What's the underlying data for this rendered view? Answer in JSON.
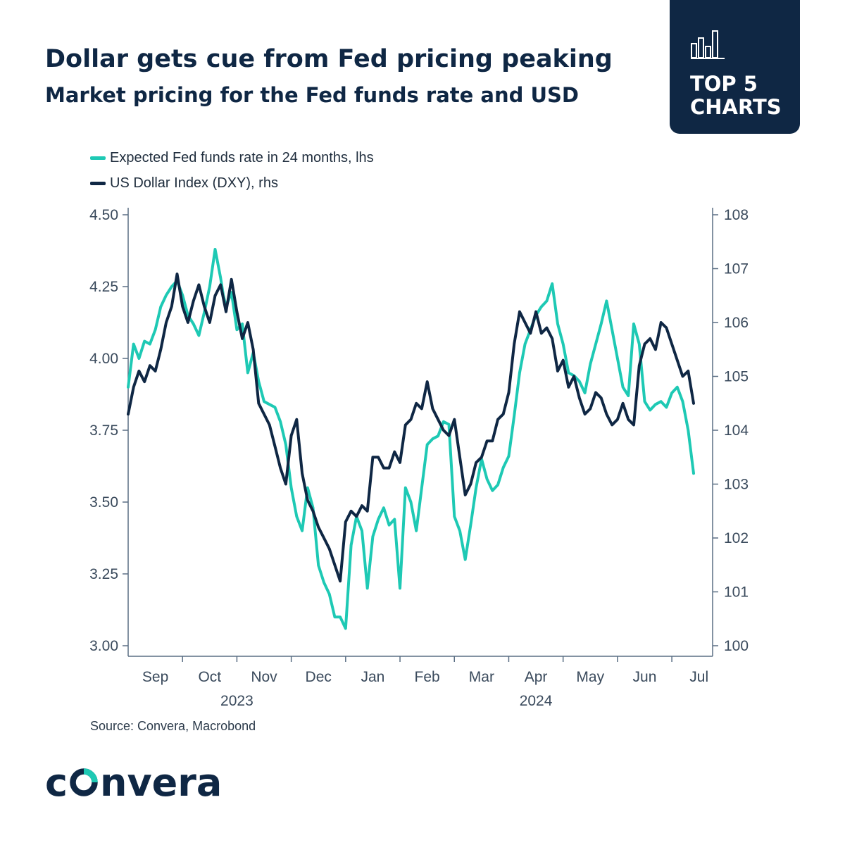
{
  "header": {
    "title": "Dollar gets cue from Fed pricing peaking",
    "subtitle": "Market pricing for the Fed funds rate and USD"
  },
  "badge": {
    "line1": "TOP 5",
    "line2": "CHARTS",
    "icon": "bar-chart-icon"
  },
  "source": "Source: Convera, Macrobond",
  "brand": {
    "logo_text": "convera",
    "logo_mark": "convera-o-mark"
  },
  "colors": {
    "navy": "#0f2744",
    "teal": "#1ec9b4",
    "axis": "#5a6e84",
    "tick_text": "#3a4a5c"
  },
  "chart_data": {
    "type": "line",
    "title": "Dollar gets cue from Fed pricing peaking",
    "subtitle": "Market pricing for the Fed funds rate and USD",
    "x_unit": "months since 2023-08-15",
    "x_range": [
      0,
      10.75
    ],
    "x_ticks": [
      {
        "label": "Sep",
        "x": 0.5
      },
      {
        "label": "Oct",
        "x": 1.5
      },
      {
        "label": "Nov",
        "x": 2.5
      },
      {
        "label": "Dec",
        "x": 3.5
      },
      {
        "label": "Jan",
        "x": 4.5
      },
      {
        "label": "Feb",
        "x": 5.5
      },
      {
        "label": "Mar",
        "x": 6.5
      },
      {
        "label": "Apr",
        "x": 7.5
      },
      {
        "label": "May",
        "x": 8.5
      },
      {
        "label": "Jun",
        "x": 9.5
      },
      {
        "label": "Jul",
        "x": 10.5
      }
    ],
    "x_tick_marks": [
      1,
      2,
      3,
      4,
      5,
      6,
      7,
      8,
      9,
      10
    ],
    "years": [
      {
        "label": "2023",
        "x": 2
      },
      {
        "label": "2024",
        "x": 7.5
      }
    ],
    "y_left": {
      "label": "lhs",
      "range": [
        3.0,
        4.5
      ],
      "ticks": [
        "3.00",
        "3.25",
        "3.50",
        "3.75",
        "4.00",
        "4.25",
        "4.50"
      ]
    },
    "y_right": {
      "label": "rhs",
      "range": [
        100,
        108
      ],
      "ticks": [
        "100",
        "101",
        "102",
        "103",
        "104",
        "105",
        "106",
        "107",
        "108"
      ]
    },
    "legend_position": "top-left",
    "grid": false,
    "series": [
      {
        "name": "Expected Fed funds rate in 24 months, lhs",
        "axis": "left",
        "color": "#1ec9b4",
        "x": [
          0.0,
          0.1,
          0.2,
          0.3,
          0.4,
          0.5,
          0.6,
          0.7,
          0.8,
          0.9,
          1.0,
          1.1,
          1.2,
          1.3,
          1.4,
          1.5,
          1.6,
          1.7,
          1.75,
          1.8,
          1.9,
          2.0,
          2.1,
          2.2,
          2.3,
          2.4,
          2.5,
          2.6,
          2.7,
          2.8,
          2.9,
          3.0,
          3.1,
          3.2,
          3.3,
          3.4,
          3.5,
          3.6,
          3.7,
          3.8,
          3.9,
          4.0,
          4.1,
          4.2,
          4.3,
          4.4,
          4.5,
          4.6,
          4.7,
          4.8,
          4.9,
          5.0,
          5.1,
          5.2,
          5.3,
          5.4,
          5.5,
          5.6,
          5.7,
          5.8,
          5.9,
          6.0,
          6.1,
          6.2,
          6.3,
          6.4,
          6.5,
          6.6,
          6.7,
          6.8,
          6.9,
          7.0,
          7.1,
          7.2,
          7.3,
          7.4,
          7.5,
          7.6,
          7.7,
          7.8,
          7.9,
          8.0,
          8.1,
          8.2,
          8.3,
          8.4,
          8.5,
          8.6,
          8.7,
          8.8,
          8.9,
          9.0,
          9.1,
          9.2,
          9.3,
          9.4,
          9.5,
          9.6,
          9.7,
          9.8,
          9.9,
          10.0,
          10.1,
          10.2,
          10.3,
          10.4
        ],
        "values": [
          3.9,
          4.05,
          4.0,
          4.06,
          4.05,
          4.1,
          4.18,
          4.22,
          4.25,
          4.27,
          4.22,
          4.15,
          4.12,
          4.08,
          4.16,
          4.25,
          4.38,
          4.28,
          4.22,
          4.18,
          4.23,
          4.1,
          4.12,
          3.95,
          4.02,
          3.92,
          3.85,
          3.84,
          3.83,
          3.78,
          3.7,
          3.55,
          3.45,
          3.4,
          3.55,
          3.48,
          3.28,
          3.22,
          3.18,
          3.1,
          3.1,
          3.06,
          3.35,
          3.45,
          3.4,
          3.2,
          3.38,
          3.44,
          3.48,
          3.42,
          3.44,
          3.2,
          3.55,
          3.5,
          3.4,
          3.55,
          3.7,
          3.72,
          3.73,
          3.78,
          3.77,
          3.45,
          3.4,
          3.3,
          3.42,
          3.55,
          3.65,
          3.58,
          3.54,
          3.56,
          3.62,
          3.66,
          3.8,
          3.95,
          4.05,
          4.1,
          4.15,
          4.18,
          4.2,
          4.26,
          4.12,
          4.05,
          3.95,
          3.94,
          3.92,
          3.88,
          3.98,
          4.05,
          4.12,
          4.2,
          4.1,
          4.0,
          3.9,
          3.87,
          4.12,
          4.05,
          3.85,
          3.82,
          3.84,
          3.85,
          3.83,
          3.88,
          3.9,
          3.85,
          3.75,
          3.6
        ]
      },
      {
        "name": "US Dollar Index (DXY), rhs",
        "axis": "right",
        "color": "#0f2744",
        "x": [
          0.0,
          0.1,
          0.2,
          0.3,
          0.4,
          0.5,
          0.6,
          0.7,
          0.8,
          0.9,
          1.0,
          1.1,
          1.2,
          1.3,
          1.4,
          1.5,
          1.6,
          1.7,
          1.8,
          1.9,
          2.0,
          2.1,
          2.2,
          2.3,
          2.4,
          2.5,
          2.6,
          2.7,
          2.8,
          2.9,
          3.0,
          3.1,
          3.2,
          3.3,
          3.4,
          3.5,
          3.6,
          3.7,
          3.8,
          3.9,
          4.0,
          4.1,
          4.2,
          4.3,
          4.4,
          4.5,
          4.6,
          4.7,
          4.8,
          4.9,
          5.0,
          5.1,
          5.2,
          5.3,
          5.4,
          5.5,
          5.6,
          5.7,
          5.8,
          5.9,
          6.0,
          6.1,
          6.2,
          6.3,
          6.4,
          6.5,
          6.6,
          6.7,
          6.8,
          6.9,
          7.0,
          7.1,
          7.2,
          7.3,
          7.4,
          7.5,
          7.6,
          7.7,
          7.8,
          7.9,
          8.0,
          8.1,
          8.2,
          8.3,
          8.4,
          8.5,
          8.6,
          8.7,
          8.8,
          8.9,
          9.0,
          9.1,
          9.2,
          9.3,
          9.4,
          9.5,
          9.6,
          9.7,
          9.8,
          9.9,
          10.0,
          10.1,
          10.2,
          10.3,
          10.4
        ],
        "values": [
          104.3,
          104.8,
          105.1,
          104.9,
          105.2,
          105.1,
          105.5,
          106.0,
          106.3,
          106.9,
          106.3,
          106.0,
          106.4,
          106.7,
          106.3,
          106.0,
          106.5,
          106.7,
          106.2,
          106.8,
          106.2,
          105.7,
          106.0,
          105.5,
          104.5,
          104.3,
          104.1,
          103.7,
          103.3,
          103.0,
          103.9,
          104.2,
          103.2,
          102.7,
          102.5,
          102.2,
          102.0,
          101.8,
          101.5,
          101.2,
          102.3,
          102.5,
          102.4,
          102.6,
          102.5,
          103.5,
          103.5,
          103.3,
          103.3,
          103.6,
          103.4,
          104.1,
          104.2,
          104.5,
          104.4,
          104.9,
          104.4,
          104.2,
          104.0,
          103.9,
          104.2,
          103.5,
          102.8,
          103.0,
          103.4,
          103.5,
          103.8,
          103.8,
          104.2,
          104.3,
          104.7,
          105.6,
          106.2,
          106.0,
          105.8,
          106.2,
          105.8,
          105.9,
          105.7,
          105.1,
          105.3,
          104.8,
          105.0,
          104.6,
          104.3,
          104.4,
          104.7,
          104.6,
          104.3,
          104.1,
          104.2,
          104.5,
          104.2,
          104.1,
          105.2,
          105.6,
          105.7,
          105.5,
          106.0,
          105.9,
          105.6,
          105.3,
          105.0,
          105.1,
          104.5
        ]
      }
    ]
  }
}
